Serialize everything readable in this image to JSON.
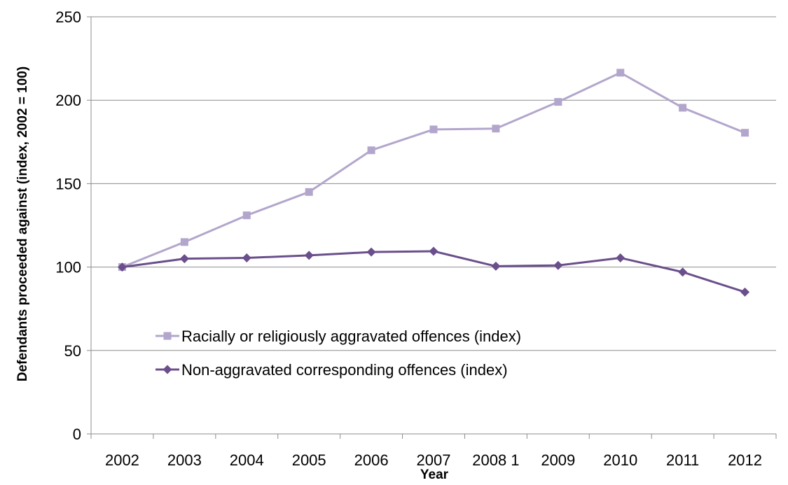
{
  "chart_data": {
    "type": "line",
    "xlabel": "Year",
    "ylabel": "Defendants proceeded against  (index, 2002 = 100)",
    "categories": [
      "2002",
      "2003",
      "2004",
      "2005",
      "2006",
      "2007",
      "2008 1",
      "2009",
      "2010",
      "2011",
      "2012"
    ],
    "ylim": [
      0,
      250
    ],
    "yticks": [
      0,
      50,
      100,
      150,
      200,
      250
    ],
    "grid": "horizontal",
    "legend_position": "inside-lower-left",
    "series": [
      {
        "name": "Racially or religiously aggravated offences (index)",
        "values": [
          100,
          115,
          131,
          145,
          170,
          182.5,
          183,
          199,
          216.5,
          195.5,
          180.5
        ],
        "color": "#b3a6cc",
        "marker": "square"
      },
      {
        "name": "Non-aggravated corresponding offences (index)",
        "values": [
          100,
          105,
          105.5,
          107,
          109,
          109.5,
          100.5,
          101,
          105.5,
          97,
          85
        ],
        "color": "#6b4f8c",
        "marker": "diamond"
      }
    ]
  }
}
